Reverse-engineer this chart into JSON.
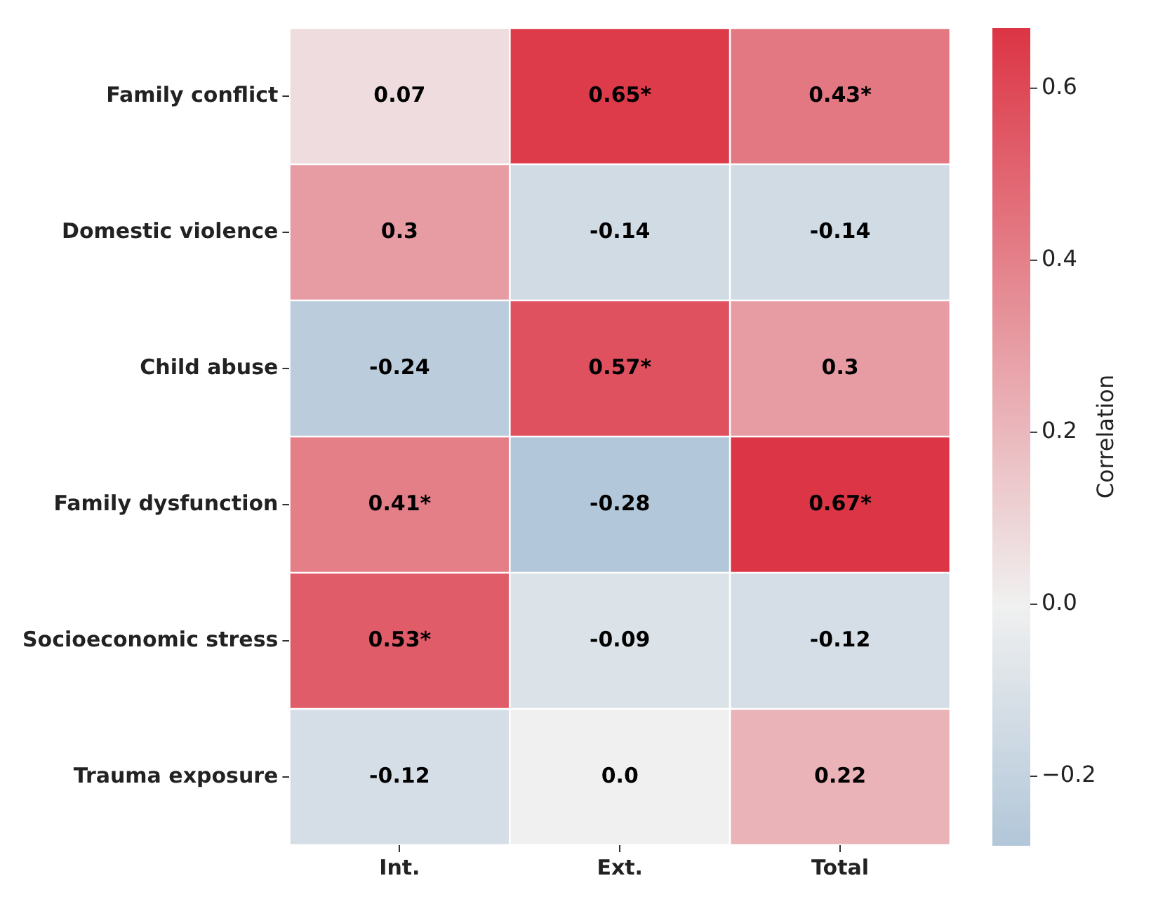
{
  "chart_data": {
    "type": "heatmap",
    "categories": [
      "Int.",
      "Ext.",
      "Total"
    ],
    "y_categories": [
      "Family conflict",
      "Domestic violence",
      "Child abuse",
      "Family dysfunction",
      "Socioeconomic stress",
      "Trauma exposure"
    ],
    "cells": [
      [
        0.07,
        0.65,
        0.43
      ],
      [
        0.3,
        -0.14,
        -0.14
      ],
      [
        -0.24,
        0.57,
        0.3
      ],
      [
        0.41,
        -0.28,
        0.67
      ],
      [
        0.53,
        -0.09,
        -0.12
      ],
      [
        -0.12,
        0.0,
        0.22
      ]
    ],
    "cell_labels": [
      [
        "0.07",
        "0.65*",
        "0.43*"
      ],
      [
        "0.3",
        "-0.14",
        "-0.14"
      ],
      [
        "-0.24",
        "0.57*",
        "0.3"
      ],
      [
        "0.41*",
        "-0.28",
        "0.67*"
      ],
      [
        "0.53*",
        "-0.09",
        "-0.12"
      ],
      [
        "-0.12",
        "0.0",
        "0.22"
      ]
    ],
    "clim": [
      -0.28,
      0.67
    ],
    "cticks": [
      {
        "value": -0.2,
        "label": "−0.2"
      },
      {
        "value": 0,
        "label": "0.0"
      },
      {
        "value": 0.2,
        "label": "0.2"
      },
      {
        "value": 0.4,
        "label": "0.4"
      },
      {
        "value": 0.6,
        "label": "0.6"
      }
    ],
    "clabel": "Correlation"
  }
}
